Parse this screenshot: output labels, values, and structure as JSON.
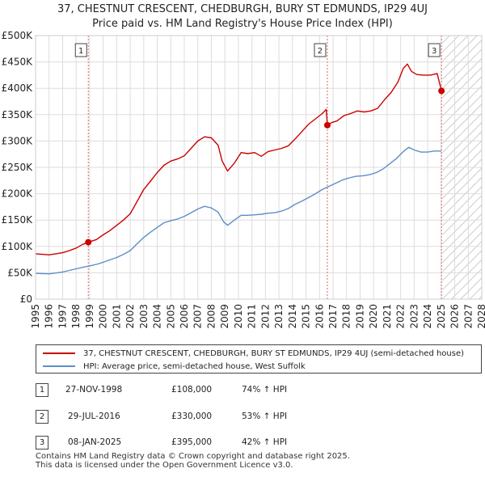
{
  "chart_data": {
    "type": "line",
    "title": "37, CHESTNUT CRESCENT, CHEDBURGH, BURY ST EDMUNDS, IP29 4UJ",
    "subtitle": "Price paid vs. HM Land Registry's House Price Index (HPI)",
    "xlabel": "",
    "ylabel": "",
    "xlim": [
      1995,
      2028
    ],
    "ylim": [
      0,
      500000
    ],
    "x_ticks": [
      "1995",
      "1996",
      "1997",
      "1998",
      "1999",
      "2000",
      "2001",
      "2002",
      "2003",
      "2004",
      "2005",
      "2006",
      "2007",
      "2008",
      "2009",
      "2010",
      "2011",
      "2012",
      "2013",
      "2014",
      "2015",
      "2016",
      "2017",
      "2018",
      "2019",
      "2020",
      "2021",
      "2022",
      "2023",
      "2024",
      "2025",
      "2026",
      "2027",
      "2028"
    ],
    "y_ticks": [
      {
        "value": 0,
        "label": "£0"
      },
      {
        "value": 50000,
        "label": "£50K"
      },
      {
        "value": 100000,
        "label": "£100K"
      },
      {
        "value": 150000,
        "label": "£150K"
      },
      {
        "value": 200000,
        "label": "£200K"
      },
      {
        "value": 250000,
        "label": "£250K"
      },
      {
        "value": 300000,
        "label": "£300K"
      },
      {
        "value": 350000,
        "label": "£350K"
      },
      {
        "value": 400000,
        "label": "£400K"
      },
      {
        "value": 450000,
        "label": "£450K"
      },
      {
        "value": 500000,
        "label": "£500K"
      }
    ],
    "grid": true,
    "future_hatch_start": 2025.1,
    "series": [
      {
        "name": "37, CHESTNUT CRESCENT, CHEDBURGH, BURY ST EDMUNDS, IP29 4UJ (semi-detached house)",
        "color": "#cc0000",
        "points": [
          [
            1995.0,
            86000
          ],
          [
            1995.5,
            85000
          ],
          [
            1996.0,
            84000
          ],
          [
            1996.5,
            86000
          ],
          [
            1997.0,
            88000
          ],
          [
            1997.5,
            92000
          ],
          [
            1998.0,
            97000
          ],
          [
            1998.5,
            104000
          ],
          [
            1998.9,
            108000
          ],
          [
            1999.5,
            113000
          ],
          [
            2000.0,
            122000
          ],
          [
            2000.5,
            130000
          ],
          [
            2001.0,
            140000
          ],
          [
            2001.5,
            150000
          ],
          [
            2002.0,
            162000
          ],
          [
            2002.5,
            185000
          ],
          [
            2003.0,
            208000
          ],
          [
            2003.5,
            224000
          ],
          [
            2004.0,
            240000
          ],
          [
            2004.5,
            254000
          ],
          [
            2005.0,
            262000
          ],
          [
            2005.5,
            266000
          ],
          [
            2006.0,
            272000
          ],
          [
            2006.5,
            286000
          ],
          [
            2007.0,
            300000
          ],
          [
            2007.5,
            308000
          ],
          [
            2008.0,
            306000
          ],
          [
            2008.5,
            292000
          ],
          [
            2008.8,
            262000
          ],
          [
            2009.2,
            243000
          ],
          [
            2009.7,
            258000
          ],
          [
            2010.2,
            278000
          ],
          [
            2010.7,
            276000
          ],
          [
            2011.2,
            278000
          ],
          [
            2011.7,
            271000
          ],
          [
            2012.2,
            280000
          ],
          [
            2012.7,
            283000
          ],
          [
            2013.2,
            286000
          ],
          [
            2013.7,
            291000
          ],
          [
            2014.2,
            304000
          ],
          [
            2014.7,
            318000
          ],
          [
            2015.2,
            332000
          ],
          [
            2015.7,
            342000
          ],
          [
            2016.2,
            352000
          ],
          [
            2016.5,
            360000
          ],
          [
            2016.58,
            330000
          ],
          [
            2016.9,
            335000
          ],
          [
            2017.3,
            338000
          ],
          [
            2017.8,
            348000
          ],
          [
            2018.3,
            352000
          ],
          [
            2018.8,
            357000
          ],
          [
            2019.3,
            355000
          ],
          [
            2019.8,
            357000
          ],
          [
            2020.3,
            362000
          ],
          [
            2020.8,
            378000
          ],
          [
            2021.3,
            392000
          ],
          [
            2021.8,
            412000
          ],
          [
            2022.2,
            438000
          ],
          [
            2022.5,
            446000
          ],
          [
            2022.8,
            432000
          ],
          [
            2023.2,
            426000
          ],
          [
            2023.7,
            425000
          ],
          [
            2024.2,
            425000
          ],
          [
            2024.7,
            428000
          ],
          [
            2025.02,
            395000
          ]
        ]
      },
      {
        "name": "HPI: Average price, semi-detached house, West Suffolk",
        "color": "#5b8fc7",
        "points": [
          [
            1995.0,
            49000
          ],
          [
            1995.5,
            48500
          ],
          [
            1996.0,
            48000
          ],
          [
            1996.5,
            49500
          ],
          [
            1997.0,
            51500
          ],
          [
            1997.5,
            54500
          ],
          [
            1998.0,
            57500
          ],
          [
            1998.5,
            60500
          ],
          [
            1999.0,
            63000
          ],
          [
            1999.5,
            66000
          ],
          [
            2000.0,
            70000
          ],
          [
            2000.5,
            74500
          ],
          [
            2001.0,
            79000
          ],
          [
            2001.5,
            85000
          ],
          [
            2002.0,
            92000
          ],
          [
            2002.5,
            105000
          ],
          [
            2003.0,
            117000
          ],
          [
            2003.5,
            127000
          ],
          [
            2004.0,
            136000
          ],
          [
            2004.5,
            145000
          ],
          [
            2005.0,
            149000
          ],
          [
            2005.5,
            152000
          ],
          [
            2006.0,
            157000
          ],
          [
            2006.5,
            164000
          ],
          [
            2007.0,
            171000
          ],
          [
            2007.5,
            176000
          ],
          [
            2008.0,
            173000
          ],
          [
            2008.5,
            165000
          ],
          [
            2008.9,
            147000
          ],
          [
            2009.2,
            140000
          ],
          [
            2009.7,
            150000
          ],
          [
            2010.2,
            159000
          ],
          [
            2010.7,
            159000
          ],
          [
            2011.2,
            160000
          ],
          [
            2011.7,
            161000
          ],
          [
            2012.2,
            163000
          ],
          [
            2012.7,
            164000
          ],
          [
            2013.2,
            167000
          ],
          [
            2013.7,
            172000
          ],
          [
            2014.2,
            180000
          ],
          [
            2014.7,
            186000
          ],
          [
            2015.2,
            193000
          ],
          [
            2015.7,
            200000
          ],
          [
            2016.2,
            208000
          ],
          [
            2016.7,
            214000
          ],
          [
            2017.2,
            220000
          ],
          [
            2017.7,
            226000
          ],
          [
            2018.2,
            230000
          ],
          [
            2018.7,
            233000
          ],
          [
            2019.2,
            234000
          ],
          [
            2019.7,
            236000
          ],
          [
            2020.2,
            240000
          ],
          [
            2020.7,
            247000
          ],
          [
            2021.2,
            257000
          ],
          [
            2021.7,
            267000
          ],
          [
            2022.2,
            280000
          ],
          [
            2022.6,
            288000
          ],
          [
            2023.0,
            283000
          ],
          [
            2023.5,
            279000
          ],
          [
            2024.0,
            279000
          ],
          [
            2024.5,
            281000
          ],
          [
            2025.0,
            281000
          ]
        ]
      }
    ],
    "sales": [
      {
        "id": "1",
        "x": 1998.9,
        "y": 108000
      },
      {
        "id": "2",
        "x": 2016.58,
        "y": 330000
      },
      {
        "id": "3",
        "x": 2025.02,
        "y": 395000
      }
    ]
  },
  "legend": {
    "property_label": "37, CHESTNUT CRESCENT, CHEDBURGH, BURY ST EDMUNDS, IP29 4UJ (semi-detached house)",
    "hpi_label": "HPI: Average price, semi-detached house, West Suffolk"
  },
  "transactions": [
    {
      "id": "1",
      "date": "27-NOV-1998",
      "price": "£108,000",
      "hpi": "74% ↑ HPI"
    },
    {
      "id": "2",
      "date": "29-JUL-2016",
      "price": "£330,000",
      "hpi": "53% ↑ HPI"
    },
    {
      "id": "3",
      "date": "08-JAN-2025",
      "price": "£395,000",
      "hpi": "42% ↑ HPI"
    }
  ],
  "footer": {
    "line1": "Contains HM Land Registry data © Crown copyright and database right 2025.",
    "line2": "This data is licensed under the Open Government Licence v3.0."
  }
}
